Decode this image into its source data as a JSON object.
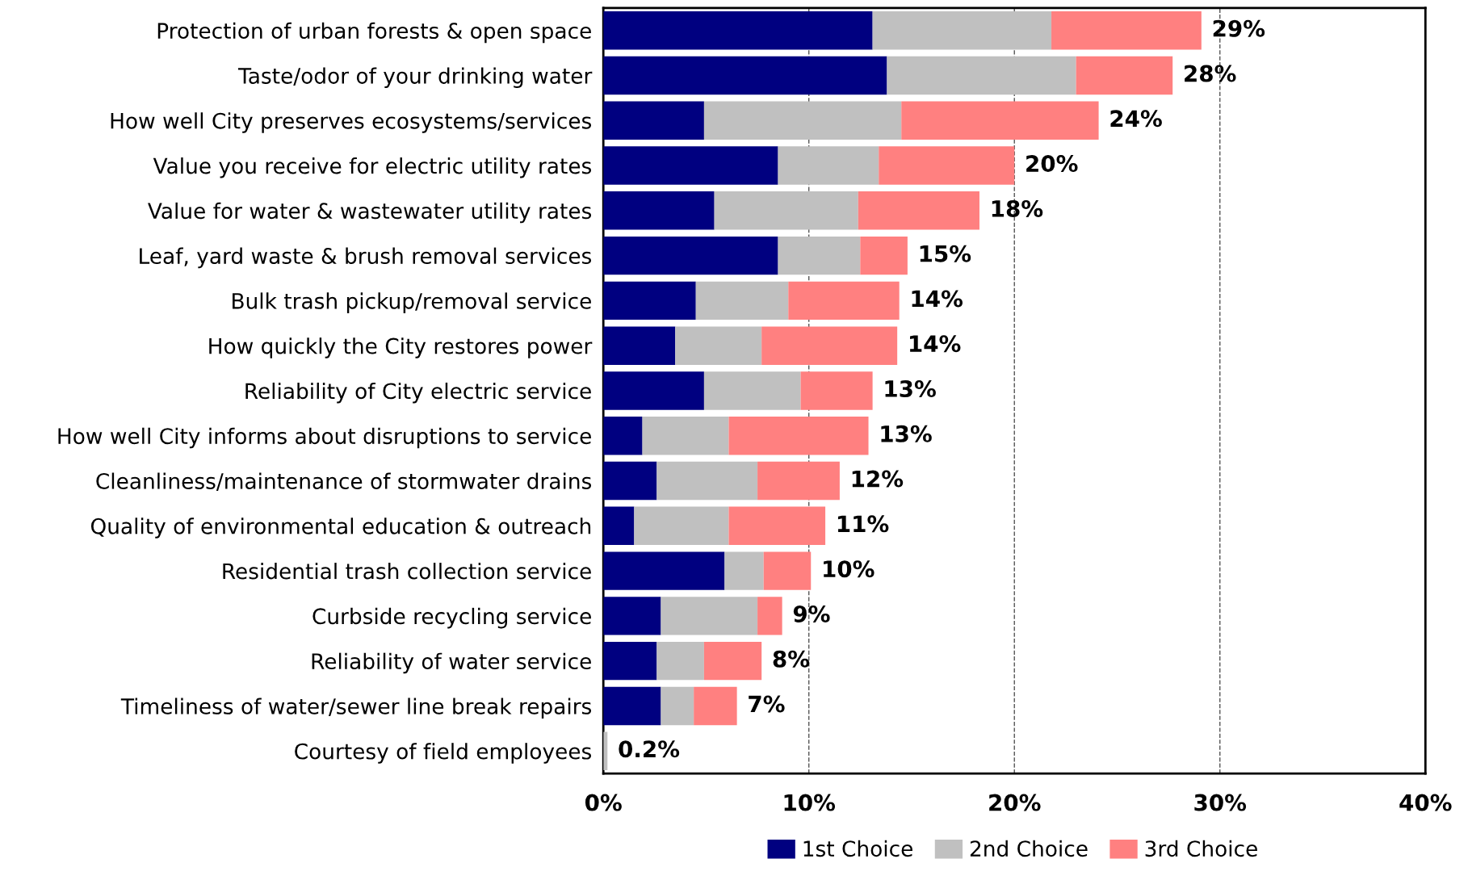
{
  "chart_data": {
    "type": "bar",
    "orientation": "horizontal",
    "stacked": true,
    "categories": [
      "Protection of urban forests & open space",
      "Taste/odor of your drinking water",
      "How well City preserves ecosystems/services",
      "Value you receive for electric utility rates",
      "Value for water & wastewater utility rates",
      "Leaf, yard waste & brush removal services",
      "Bulk trash pickup/removal service",
      "How quickly the City restores power",
      "Reliability of City electric service",
      "How well City informs about disruptions to service",
      "Cleanliness/maintenance of stormwater drains",
      "Quality of environmental education & outreach",
      "Residential trash collection service",
      "Curbside recycling service",
      "Reliability of water service",
      "Timeliness of water/sewer line break repairs",
      "Courtesy of field employees"
    ],
    "series": [
      {
        "name": "1st Choice",
        "color": "#000080",
        "values": [
          13.1,
          13.8,
          4.9,
          8.5,
          5.4,
          8.5,
          4.5,
          3.5,
          4.9,
          1.9,
          2.6,
          1.5,
          5.9,
          2.8,
          2.6,
          2.8,
          0
        ]
      },
      {
        "name": "2nd Choice",
        "color": "#c0c0c0",
        "values": [
          8.7,
          9.2,
          9.6,
          4.9,
          7.0,
          4.0,
          4.5,
          4.2,
          4.7,
          4.2,
          4.9,
          4.6,
          1.9,
          4.7,
          2.3,
          1.6,
          0.2
        ]
      },
      {
        "name": "3rd Choice",
        "color": "#ff8080",
        "values": [
          7.3,
          4.7,
          9.6,
          6.6,
          5.9,
          2.3,
          5.4,
          6.6,
          3.5,
          6.8,
          4.0,
          4.7,
          2.3,
          1.2,
          2.8,
          2.1,
          0
        ]
      }
    ],
    "totals": [
      "29%",
      "28%",
      "24%",
      "20%",
      "18%",
      "15%",
      "14%",
      "14%",
      "13%",
      "13%",
      "12%",
      "11%",
      "10%",
      "9%",
      "8%",
      "7%",
      "0.2%"
    ],
    "xlim": [
      0,
      40
    ],
    "xticks": [
      {
        "value": 0,
        "label": "0%"
      },
      {
        "value": 10,
        "label": "10%"
      },
      {
        "value": 20,
        "label": "20%"
      },
      {
        "value": 30,
        "label": "30%"
      },
      {
        "value": 40,
        "label": "40%"
      }
    ],
    "grid": "x",
    "legend": "bottom"
  }
}
